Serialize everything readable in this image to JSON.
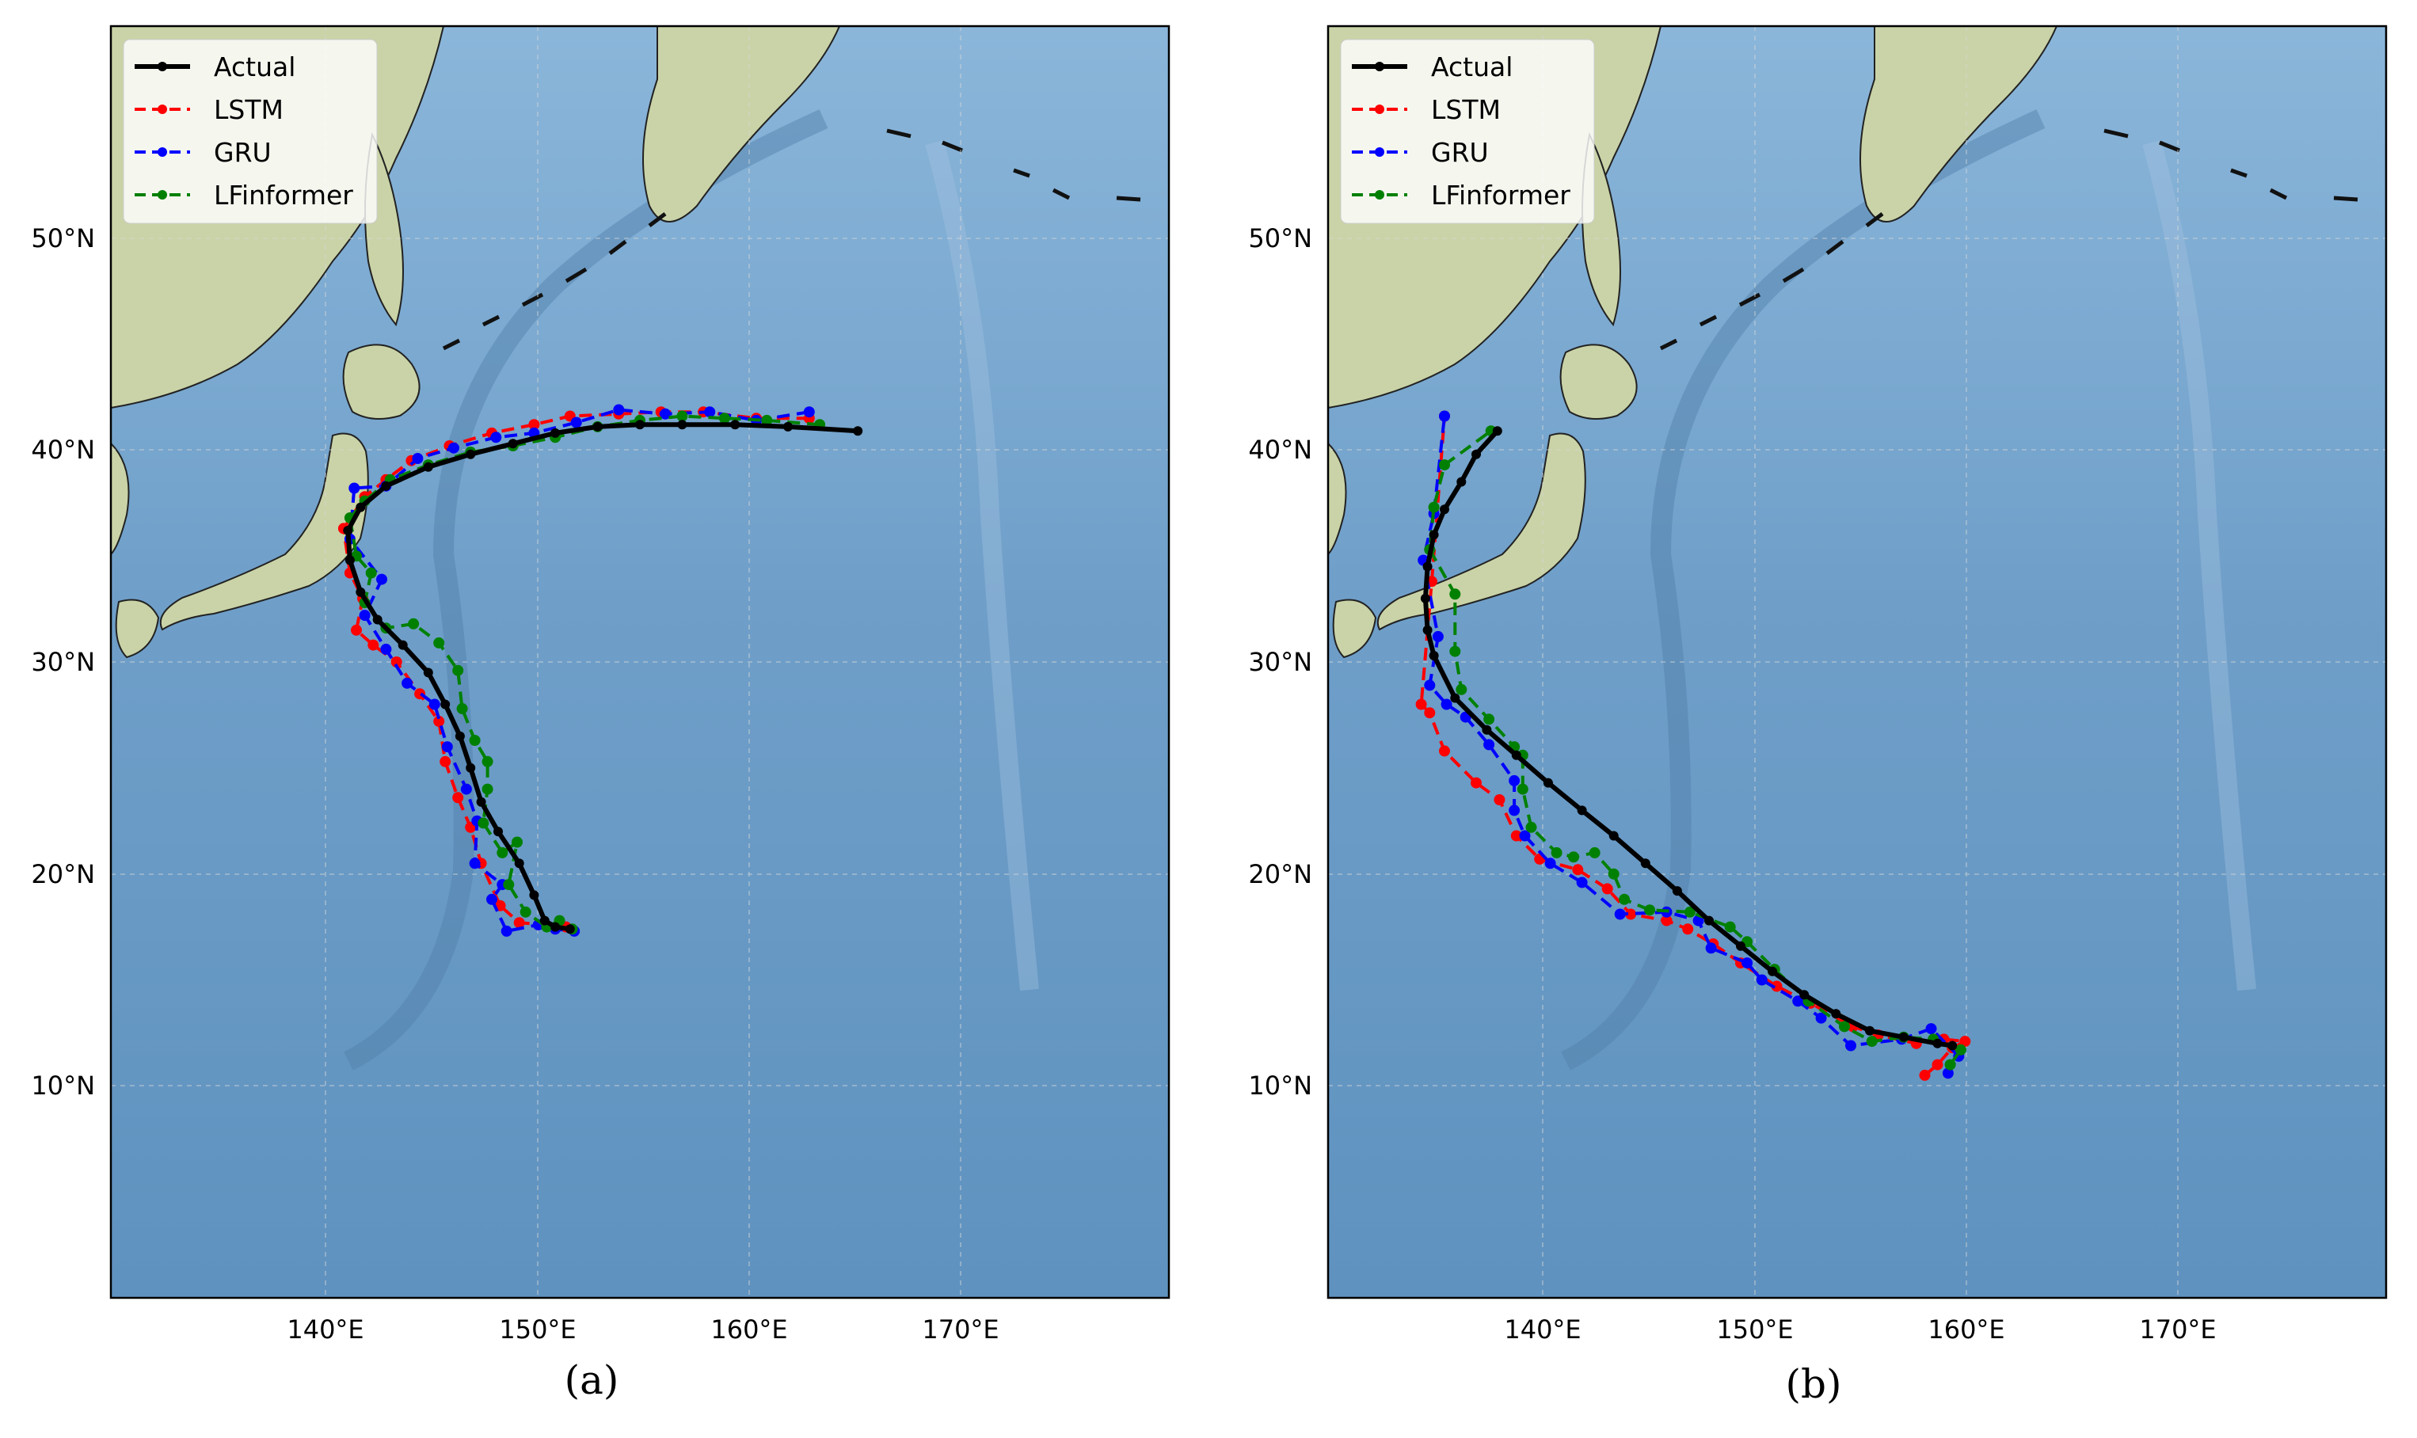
{
  "figure": {
    "panels": [
      {
        "caption": "(a)",
        "lat_ticks": [
          "10°N",
          "20°N",
          "30°N",
          "40°N",
          "50°N"
        ],
        "lon_ticks": [
          "140°E",
          "150°E",
          "160°E",
          "170°E"
        ],
        "legend": [
          "Actual",
          "LSTM",
          "GRU",
          "LFinformer"
        ]
      },
      {
        "caption": "(b)",
        "lat_ticks": [
          "10°N",
          "20°N",
          "30°N",
          "40°N",
          "50°N"
        ],
        "lon_ticks": [
          "140°E",
          "150°E",
          "160°E",
          "170°E"
        ],
        "legend": [
          "Actual",
          "LSTM",
          "GRU",
          "LFinformer"
        ]
      }
    ]
  },
  "chart_data": [
    {
      "type": "line",
      "caption": "(a)",
      "xlim": [
        130,
        180
      ],
      "ylim": [
        0,
        60
      ],
      "x_ticks": [
        140,
        150,
        160,
        170
      ],
      "y_ticks": [
        10,
        20,
        30,
        40,
        50
      ],
      "grid": true,
      "legend_position": "top-left",
      "series": [
        {
          "name": "Actual",
          "color": "#000000",
          "style": "solid",
          "points": [
            [
              165.3,
              40.9
            ],
            [
              162.0,
              41.1
            ],
            [
              159.5,
              41.2
            ],
            [
              157.0,
              41.2
            ],
            [
              155.0,
              41.2
            ],
            [
              153.0,
              41.1
            ],
            [
              151.0,
              40.8
            ],
            [
              149.0,
              40.3
            ],
            [
              147.0,
              39.8
            ],
            [
              145.0,
              39.2
            ],
            [
              143.0,
              38.3
            ],
            [
              141.8,
              37.3
            ],
            [
              141.2,
              36.2
            ],
            [
              141.3,
              34.8
            ],
            [
              141.8,
              33.3
            ],
            [
              142.6,
              32.0
            ],
            [
              143.8,
              30.8
            ],
            [
              145.0,
              29.5
            ],
            [
              145.8,
              28.0
            ],
            [
              146.5,
              26.5
            ],
            [
              147.0,
              25.0
            ],
            [
              147.5,
              23.4
            ],
            [
              148.3,
              22.0
            ],
            [
              149.3,
              20.5
            ],
            [
              150.0,
              19.0
            ],
            [
              150.5,
              17.8
            ],
            [
              151.0,
              17.5
            ],
            [
              151.7,
              17.4
            ]
          ]
        },
        {
          "name": "LSTM",
          "color": "#ff0000",
          "style": "dashed",
          "points": [
            [
              163.0,
              41.5
            ],
            [
              160.5,
              41.5
            ],
            [
              158.0,
              41.8
            ],
            [
              156.0,
              41.8
            ],
            [
              154.0,
              41.7
            ],
            [
              151.7,
              41.6
            ],
            [
              150.0,
              41.2
            ],
            [
              148.0,
              40.8
            ],
            [
              146.0,
              40.2
            ],
            [
              144.2,
              39.5
            ],
            [
              143.0,
              38.6
            ],
            [
              142.0,
              37.8
            ],
            [
              141.0,
              36.3
            ],
            [
              141.3,
              34.2
            ],
            [
              141.9,
              33.0
            ],
            [
              141.6,
              31.5
            ],
            [
              142.4,
              30.8
            ],
            [
              143.5,
              30.0
            ],
            [
              144.6,
              28.5
            ],
            [
              145.5,
              27.2
            ],
            [
              145.8,
              25.3
            ],
            [
              146.4,
              23.6
            ],
            [
              147.0,
              22.2
            ],
            [
              147.5,
              20.5
            ],
            [
              148.4,
              18.5
            ],
            [
              149.3,
              17.7
            ],
            [
              150.5,
              17.6
            ],
            [
              151.5,
              17.5
            ]
          ]
        },
        {
          "name": "GRU",
          "color": "#0000ff",
          "style": "dashed",
          "points": [
            [
              163.0,
              41.8
            ],
            [
              160.5,
              41.4
            ],
            [
              158.3,
              41.8
            ],
            [
              156.2,
              41.7
            ],
            [
              154.0,
              41.9
            ],
            [
              152.0,
              41.3
            ],
            [
              150.0,
              40.8
            ],
            [
              148.2,
              40.6
            ],
            [
              146.2,
              40.1
            ],
            [
              144.5,
              39.6
            ],
            [
              143.0,
              38.3
            ],
            [
              141.5,
              38.2
            ],
            [
              141.3,
              35.8
            ],
            [
              142.8,
              33.9
            ],
            [
              142.0,
              32.2
            ],
            [
              143.0,
              30.6
            ],
            [
              144.0,
              29.0
            ],
            [
              145.3,
              28.0
            ],
            [
              145.9,
              26.0
            ],
            [
              146.8,
              24.0
            ],
            [
              147.3,
              22.5
            ],
            [
              147.2,
              20.5
            ],
            [
              148.5,
              19.5
            ],
            [
              148.0,
              18.8
            ],
            [
              148.7,
              17.3
            ],
            [
              150.2,
              17.6
            ],
            [
              151.0,
              17.4
            ],
            [
              151.9,
              17.3
            ]
          ]
        },
        {
          "name": "LFinformer",
          "color": "#008000",
          "style": "dashed",
          "points": [
            [
              163.5,
              41.2
            ],
            [
              161.0,
              41.4
            ],
            [
              159.0,
              41.5
            ],
            [
              157.0,
              41.6
            ],
            [
              155.0,
              41.4
            ],
            [
              153.0,
              41.1
            ],
            [
              151.0,
              40.6
            ],
            [
              149.0,
              40.2
            ],
            [
              147.0,
              39.9
            ],
            [
              145.0,
              39.3
            ],
            [
              143.2,
              38.6
            ],
            [
              142.0,
              37.6
            ],
            [
              141.3,
              36.8
            ],
            [
              141.6,
              35.0
            ],
            [
              142.3,
              34.2
            ],
            [
              142.0,
              32.8
            ],
            [
              143.0,
              31.6
            ],
            [
              144.3,
              31.8
            ],
            [
              145.5,
              30.9
            ],
            [
              146.4,
              29.6
            ],
            [
              146.6,
              27.8
            ],
            [
              147.2,
              26.3
            ],
            [
              147.8,
              25.3
            ],
            [
              147.8,
              24.0
            ],
            [
              147.6,
              22.4
            ],
            [
              148.5,
              21.0
            ],
            [
              149.2,
              21.5
            ],
            [
              148.8,
              19.5
            ],
            [
              149.6,
              18.2
            ],
            [
              150.6,
              17.5
            ],
            [
              151.2,
              17.8
            ],
            [
              151.8,
              17.4
            ]
          ]
        }
      ]
    },
    {
      "type": "line",
      "caption": "(b)",
      "xlim": [
        130,
        180
      ],
      "ylim": [
        0,
        60
      ],
      "x_ticks": [
        140,
        150,
        160,
        170
      ],
      "y_ticks": [
        10,
        20,
        30,
        40,
        50
      ],
      "grid": true,
      "legend_position": "top-left",
      "series": [
        {
          "name": "Actual",
          "color": "#000000",
          "style": "solid",
          "points": [
            [
              138.0,
              40.9
            ],
            [
              137.0,
              39.8
            ],
            [
              136.3,
              38.5
            ],
            [
              135.5,
              37.2
            ],
            [
              135.0,
              36.0
            ],
            [
              134.7,
              34.5
            ],
            [
              134.6,
              33.0
            ],
            [
              134.7,
              31.5
            ],
            [
              135.0,
              30.3
            ],
            [
              136.0,
              28.3
            ],
            [
              137.5,
              26.8
            ],
            [
              138.9,
              25.6
            ],
            [
              140.4,
              24.3
            ],
            [
              142.0,
              23.0
            ],
            [
              143.5,
              21.8
            ],
            [
              145.0,
              20.5
            ],
            [
              146.5,
              19.2
            ],
            [
              148.0,
              17.8
            ],
            [
              149.5,
              16.6
            ],
            [
              151.0,
              15.4
            ],
            [
              152.5,
              14.3
            ],
            [
              154.0,
              13.4
            ],
            [
              155.6,
              12.6
            ],
            [
              157.2,
              12.3
            ],
            [
              158.8,
              12.0
            ],
            [
              159.5,
              11.9
            ]
          ]
        },
        {
          "name": "LSTM",
          "color": "#ff0000",
          "style": "dashed",
          "points": [
            [
              158.2,
              10.5
            ],
            [
              158.8,
              11.0
            ],
            [
              159.5,
              11.8
            ],
            [
              160.1,
              12.1
            ],
            [
              159.1,
              12.2
            ],
            [
              157.8,
              12.0
            ],
            [
              156.0,
              12.4
            ],
            [
              154.8,
              12.8
            ],
            [
              152.8,
              13.9
            ],
            [
              151.2,
              14.7
            ],
            [
              149.5,
              15.8
            ],
            [
              148.2,
              16.7
            ],
            [
              147.0,
              17.4
            ],
            [
              146.0,
              17.8
            ],
            [
              144.3,
              18.1
            ],
            [
              143.2,
              19.3
            ],
            [
              141.8,
              20.2
            ],
            [
              140.0,
              20.7
            ],
            [
              138.9,
              21.8
            ],
            [
              138.1,
              23.5
            ],
            [
              137.0,
              24.3
            ],
            [
              135.5,
              25.8
            ],
            [
              134.8,
              27.6
            ],
            [
              134.4,
              28.0
            ],
            [
              134.9,
              33.8
            ],
            [
              135.5,
              41.6
            ]
          ]
        },
        {
          "name": "GRU",
          "color": "#0000ff",
          "style": "dashed",
          "points": [
            [
              159.3,
              10.6
            ],
            [
              159.8,
              11.4
            ],
            [
              158.5,
              12.7
            ],
            [
              157.1,
              12.2
            ],
            [
              154.7,
              11.9
            ],
            [
              153.3,
              13.2
            ],
            [
              152.2,
              14.0
            ],
            [
              150.5,
              15.0
            ],
            [
              149.8,
              15.8
            ],
            [
              148.1,
              16.5
            ],
            [
              147.5,
              17.8
            ],
            [
              146.0,
              18.2
            ],
            [
              143.8,
              18.1
            ],
            [
              142.0,
              19.6
            ],
            [
              140.5,
              20.5
            ],
            [
              139.3,
              21.8
            ],
            [
              138.8,
              23.0
            ],
            [
              138.8,
              24.4
            ],
            [
              137.6,
              26.1
            ],
            [
              136.5,
              27.4
            ],
            [
              135.6,
              28.0
            ],
            [
              134.8,
              28.9
            ],
            [
              135.2,
              31.2
            ],
            [
              134.5,
              34.8
            ],
            [
              135.0,
              37.0
            ],
            [
              135.5,
              41.6
            ]
          ]
        },
        {
          "name": "LFinformer",
          "color": "#008000",
          "style": "dashed",
          "points": [
            [
              159.4,
              11.0
            ],
            [
              159.9,
              11.7
            ],
            [
              158.6,
              12.2
            ],
            [
              157.2,
              12.3
            ],
            [
              155.7,
              12.1
            ],
            [
              154.4,
              12.8
            ],
            [
              152.7,
              14.0
            ],
            [
              151.1,
              15.5
            ],
            [
              149.8,
              16.8
            ],
            [
              149.0,
              17.5
            ],
            [
              147.1,
              18.2
            ],
            [
              145.2,
              18.3
            ],
            [
              144.0,
              18.8
            ],
            [
              143.5,
              20.0
            ],
            [
              142.6,
              21.0
            ],
            [
              141.6,
              20.8
            ],
            [
              140.8,
              21.0
            ],
            [
              139.6,
              22.2
            ],
            [
              139.2,
              24.0
            ],
            [
              139.2,
              25.6
            ],
            [
              138.8,
              26.0
            ],
            [
              137.6,
              27.3
            ],
            [
              136.3,
              28.7
            ],
            [
              136.0,
              30.5
            ],
            [
              136.0,
              33.2
            ],
            [
              134.8,
              35.3
            ],
            [
              135.0,
              37.3
            ],
            [
              135.5,
              39.3
            ],
            [
              137.7,
              40.9
            ]
          ]
        }
      ]
    }
  ]
}
